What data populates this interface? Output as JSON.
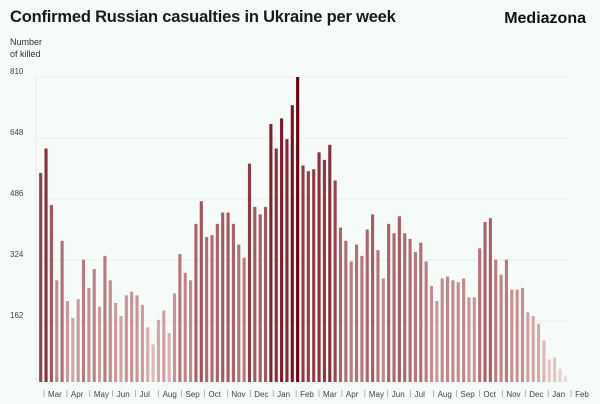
{
  "header": {
    "title": "Confirmed Russian casualties in Ukraine per week",
    "brand": "Mediazona",
    "ylabel_line1": "Number",
    "ylabel_line2": "of killed"
  },
  "chart_data": {
    "type": "bar",
    "title": "Confirmed Russian casualties in Ukraine per week",
    "ylabel": "Number of killed",
    "xlabel": "",
    "ylim": [
      0,
      810
    ],
    "yticks": [
      162,
      324,
      486,
      648,
      810
    ],
    "month_labels": [
      "Mar",
      "Apr",
      "May",
      "Jun",
      "Jul",
      "Aug",
      "Sep",
      "Oct",
      "Nov",
      "Dec",
      "Jan",
      "Feb",
      "Mar",
      "Apr",
      "May",
      "Jun",
      "Jul",
      "Aug",
      "Sep",
      "Oct",
      "Nov",
      "Dec",
      "Jan",
      "Feb"
    ],
    "series": [
      {
        "name": "Confirmed killed per week",
        "values": [
          555,
          620,
          470,
          270,
          375,
          215,
          170,
          220,
          325,
          250,
          300,
          200,
          335,
          270,
          210,
          175,
          230,
          240,
          230,
          205,
          145,
          100,
          165,
          190,
          130,
          235,
          340,
          290,
          270,
          420,
          480,
          385,
          390,
          420,
          450,
          450,
          420,
          365,
          330,
          580,
          465,
          445,
          465,
          685,
          620,
          700,
          645,
          735,
          810,
          575,
          560,
          565,
          610,
          590,
          630,
          535,
          410,
          375,
          320,
          365,
          335,
          405,
          445,
          350,
          275,
          420,
          395,
          440,
          395,
          380,
          345,
          370,
          320,
          255,
          215,
          275,
          280,
          270,
          265,
          275,
          225,
          225,
          355,
          425,
          435,
          325,
          285,
          325,
          245,
          245,
          250,
          185,
          175,
          155,
          110,
          60,
          65,
          35,
          15
        ]
      }
    ]
  }
}
